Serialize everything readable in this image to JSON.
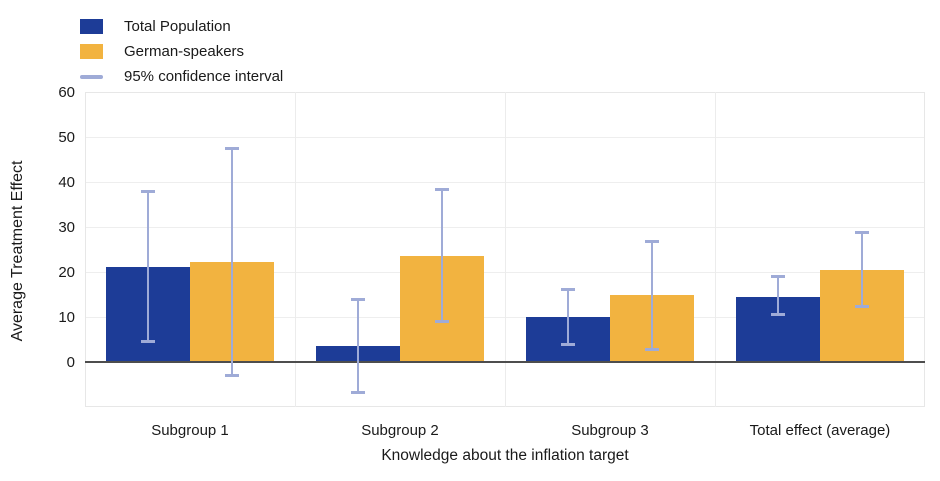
{
  "chart_data": {
    "type": "bar",
    "title": "",
    "categories": [
      "Subgroup 1",
      "Subgroup 2",
      "Subgroup 3",
      "Total effect (average)"
    ],
    "series": [
      {
        "name": "Total Population",
        "color": "#1d3c97",
        "values": [
          21.1,
          3.6,
          10.0,
          14.5
        ],
        "ci_low": [
          4.5,
          -6.8,
          3.7,
          10.4
        ],
        "ci_high": [
          38.0,
          14.1,
          16.3,
          19.2
        ]
      },
      {
        "name": "German-speakers",
        "color": "#f2b340",
        "values": [
          22.3,
          23.5,
          14.9,
          20.4
        ],
        "ci_low": [
          -3.0,
          8.8,
          2.7,
          12.3
        ],
        "ci_high": [
          47.5,
          38.5,
          27.0,
          28.9
        ]
      }
    ],
    "ci_legend_label": "95% confidence interval",
    "ci_color": "#9fabd7",
    "xlabel": "Knowledge about the inflation target",
    "ylabel": "Average Treatment Effect",
    "ylim": [
      -10,
      60
    ],
    "yticks": [
      0,
      10,
      20,
      30,
      40,
      50,
      60
    ],
    "grid": true,
    "legend_position": "top-left",
    "zero_line_color": "#4d4d4d"
  }
}
